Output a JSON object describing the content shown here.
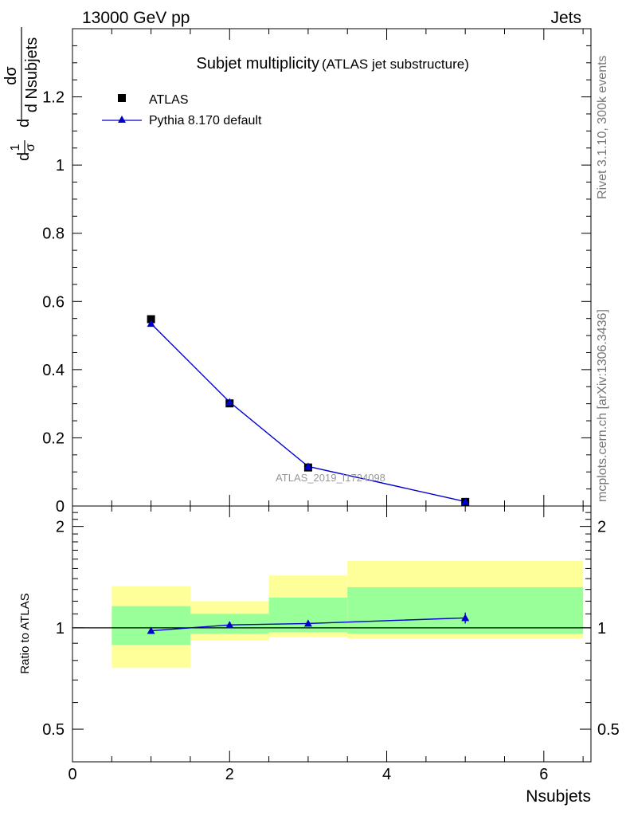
{
  "header": {
    "energy_label": "13000 GeV pp",
    "process_label": "Jets"
  },
  "side_labels": {
    "rivet": "Rivet 3.1.10,  300k events",
    "mcplots": "mcplots.cern.ch [arXiv:1306.3436]"
  },
  "chart_data": [
    {
      "type": "scatter",
      "panel": "main",
      "title": "Subjet multiplicity",
      "subtitle": "(ATLAS jet substructure)",
      "ylabel_parts": {
        "prefix": "d",
        "frac1_num": "1",
        "frac1_den": "σ",
        "mid": "d",
        "frac2_num": "dσ",
        "frac2_den": "d Nsubjets"
      },
      "xlim": [
        0,
        6.6
      ],
      "ylim": [
        0,
        1.4
      ],
      "yticks": [
        0,
        0.2,
        0.4,
        0.6,
        0.8,
        1,
        1.2
      ],
      "ytick_labels": [
        "0",
        "0.2",
        "0.4",
        "0.6",
        "0.8",
        "1",
        "1.2"
      ],
      "grid": false,
      "legend": "top-left",
      "watermark": "ATLAS_2019_I1724098",
      "series": [
        {
          "name": "ATLAS",
          "marker": "square",
          "color": "#000000",
          "x": [
            1,
            2,
            3,
            5
          ],
          "y": [
            0.548,
            0.301,
            0.113,
            0.012
          ]
        },
        {
          "name": "Pythia 8.170 default",
          "marker": "triangle",
          "color": "#0000cc",
          "x": [
            1,
            2,
            3,
            5
          ],
          "y": [
            0.535,
            0.305,
            0.116,
            0.013
          ]
        }
      ]
    },
    {
      "type": "line",
      "panel": "ratio",
      "xlabel": "Nsubjets",
      "ylabel": "Ratio to ATLAS",
      "xlim": [
        0,
        6.6
      ],
      "ylim": [
        0.4,
        2.3
      ],
      "log_y": true,
      "xticks": [
        0,
        2,
        4,
        6
      ],
      "xtick_labels": [
        "0",
        "2",
        "4",
        "6"
      ],
      "yticks": [
        0.5,
        1,
        2
      ],
      "ytick_labels": [
        "0.5",
        "1",
        "2"
      ],
      "reference_line": 1,
      "bands": [
        {
          "x": [
            0.5,
            1.5
          ],
          "yellow": [
            0.76,
            1.33
          ],
          "green": [
            0.89,
            1.16
          ]
        },
        {
          "x": [
            1.5,
            2.5
          ],
          "yellow": [
            0.92,
            1.2
          ],
          "green": [
            0.96,
            1.1
          ]
        },
        {
          "x": [
            2.5,
            3.5
          ],
          "yellow": [
            0.94,
            1.43
          ],
          "green": [
            0.97,
            1.23
          ]
        },
        {
          "x": [
            3.5,
            6.5
          ],
          "yellow": [
            0.93,
            1.58
          ],
          "green": [
            0.96,
            1.32
          ]
        }
      ],
      "series": [
        {
          "name": "Pythia 8.170 default",
          "color": "#0000cc",
          "x": [
            1,
            2,
            3,
            5
          ],
          "y": [
            0.98,
            1.02,
            1.03,
            1.07
          ],
          "err": [
            0.01,
            0.01,
            0.02,
            0.04
          ]
        }
      ]
    }
  ],
  "colors": {
    "band_yellow": "#ffff99",
    "band_green": "#99ff99",
    "mc_blue": "#0000cc",
    "side_text": "#777777",
    "watermark": "#999999"
  }
}
